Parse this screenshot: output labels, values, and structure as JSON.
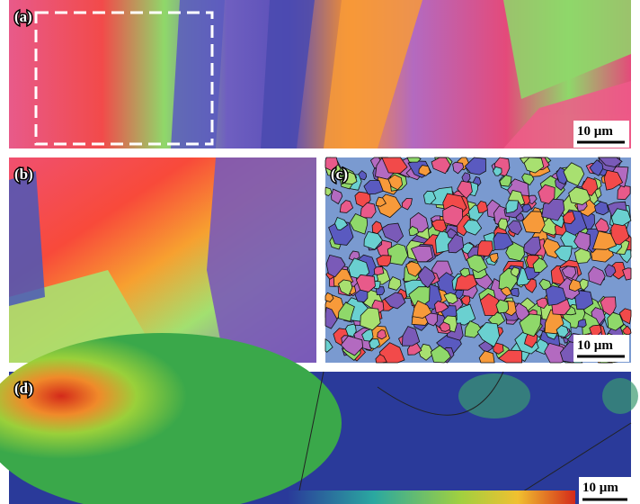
{
  "panels": [
    {
      "label": "(a)",
      "scale_bar": "10 µm"
    },
    {
      "label": "(b)"
    },
    {
      "label": "(c)",
      "scale_bar": "10 µm"
    },
    {
      "label": "(d)",
      "scale_bar": "10 µm"
    }
  ]
}
